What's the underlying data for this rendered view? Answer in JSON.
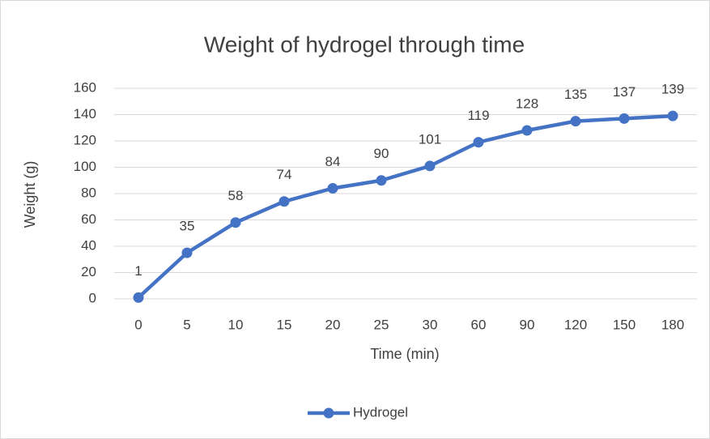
{
  "chart_data": {
    "type": "line",
    "title": "Weight of hydrogel through time",
    "x_label": "Time (min)",
    "y_label": "Weight (g)",
    "categories": [
      "0",
      "5",
      "10",
      "15",
      "20",
      "25",
      "30",
      "60",
      "90",
      "120",
      "150",
      "180"
    ],
    "series": [
      {
        "name": "Hydrogel",
        "color": "#4472c4",
        "values": [
          1,
          35,
          58,
          74,
          84,
          90,
          101,
          119,
          128,
          135,
          137,
          139
        ]
      }
    ],
    "ylim": [
      0,
      160
    ],
    "yticks": [
      0,
      20,
      40,
      60,
      80,
      100,
      120,
      140,
      160
    ],
    "grid": true,
    "legend": "bottom"
  }
}
